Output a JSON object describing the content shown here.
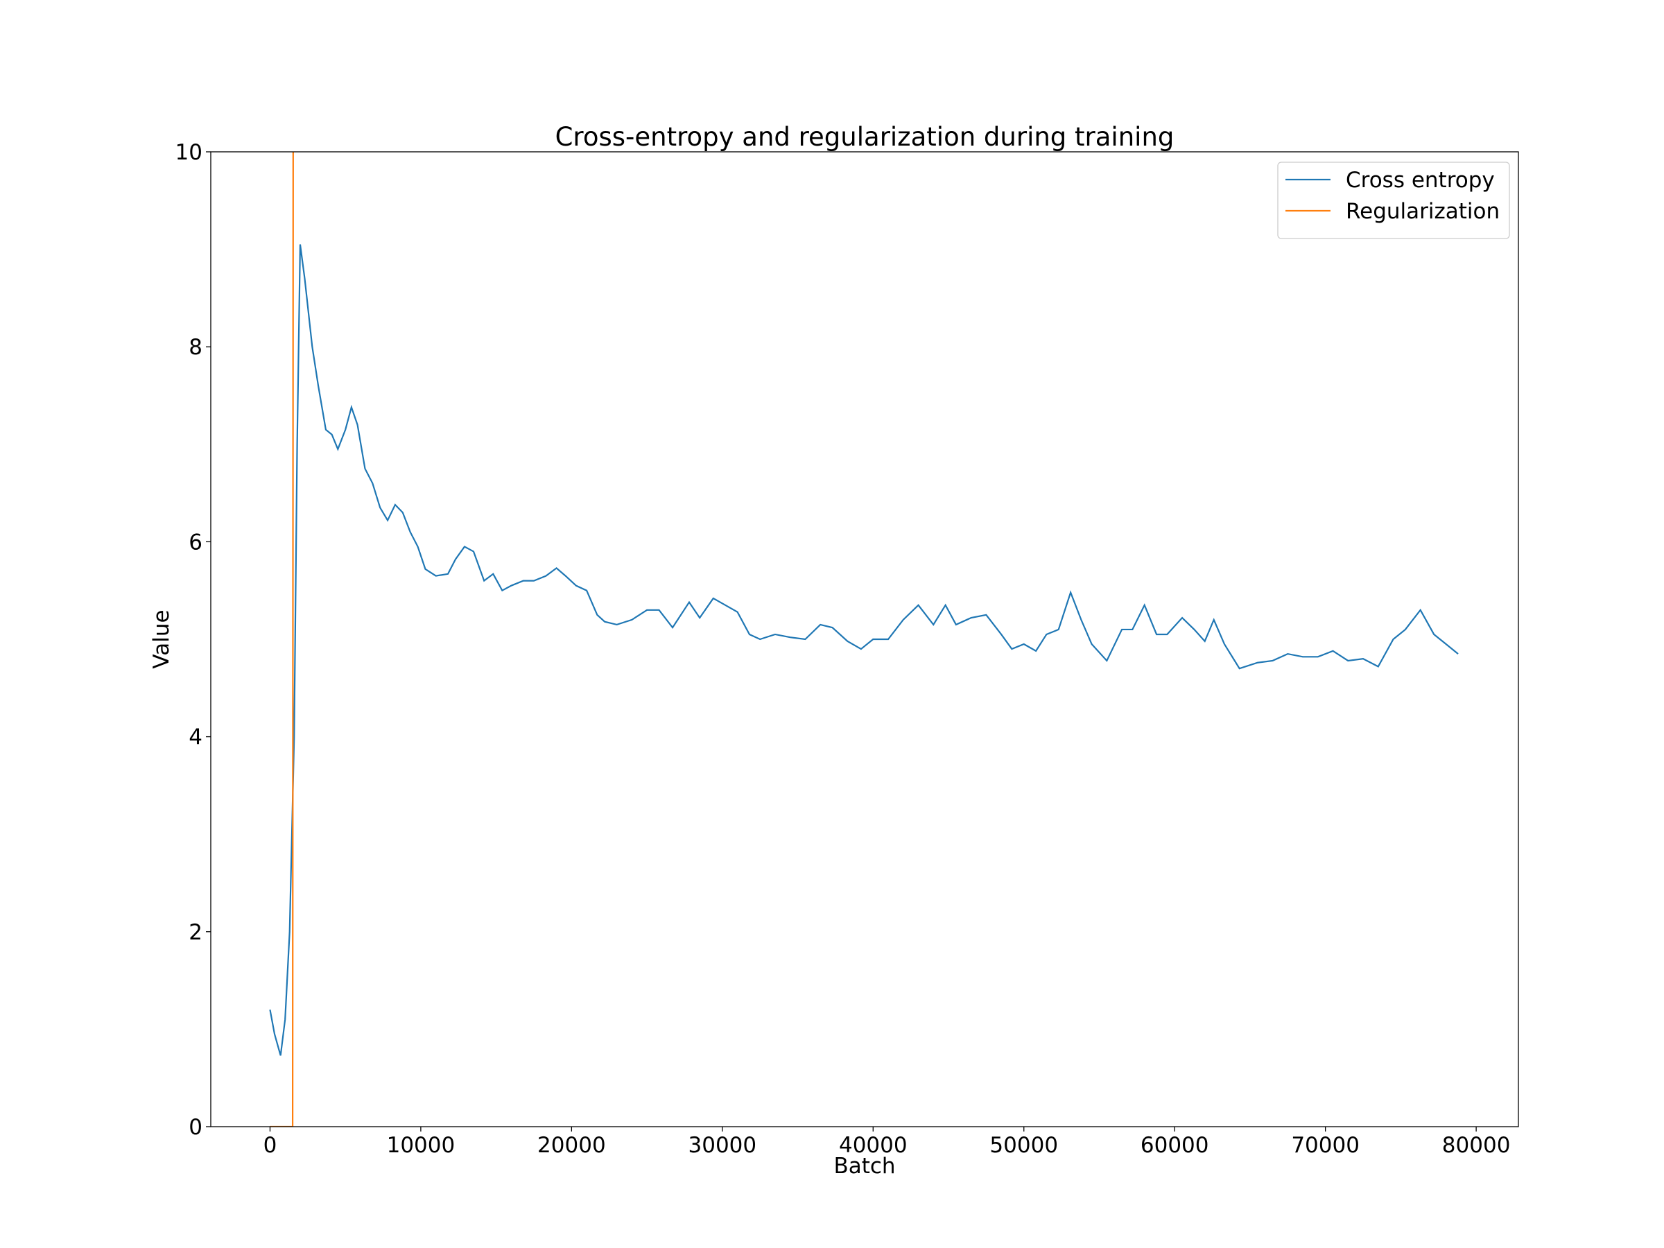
{
  "chart_data": {
    "type": "line",
    "title": "Cross-entropy and regularization during training",
    "x_label": "Batch",
    "y_label": "Value",
    "xlim": [
      -3930,
      82800
    ],
    "ylim": [
      0,
      10
    ],
    "xticks": [
      0,
      10000,
      20000,
      30000,
      40000,
      50000,
      60000,
      70000,
      80000
    ],
    "yticks": [
      0,
      2,
      4,
      6,
      8,
      10
    ],
    "legend": "upper right",
    "series": [
      {
        "name": "Cross entropy",
        "color": "#1f77b4",
        "x": [
          0,
          300,
          700,
          1000,
          1300,
          1600,
          1800,
          2000,
          2300,
          2800,
          3200,
          3700,
          4100,
          4500,
          5000,
          5400,
          5800,
          6300,
          6800,
          7300,
          7800,
          8300,
          8800,
          9300,
          9800,
          10300,
          11000,
          11800,
          12300,
          12900,
          13500,
          14200,
          14800,
          15400,
          16000,
          16800,
          17500,
          18300,
          19000,
          19600,
          20300,
          21000,
          21700,
          22200,
          23000,
          24000,
          25000,
          25800,
          26700,
          27800,
          28500,
          29400,
          30200,
          31000,
          31800,
          32500,
          33500,
          34500,
          35500,
          36500,
          37300,
          38300,
          39200,
          40000,
          41000,
          42000,
          43000,
          44000,
          44800,
          45500,
          46500,
          47500,
          48500,
          49200,
          50000,
          50800,
          51500,
          52300,
          53100,
          53800,
          54500,
          55500,
          56500,
          57200,
          58000,
          58800,
          59500,
          60500,
          61300,
          62000,
          62600,
          63300,
          64300,
          65500,
          66500,
          67500,
          68500,
          69500,
          70500,
          71500,
          72500,
          73500,
          74500,
          75300,
          76300,
          77200,
          78000,
          78800
        ],
        "values": [
          1.2,
          0.95,
          0.73,
          1.1,
          2.0,
          4.0,
          7.0,
          9.05,
          8.7,
          8.0,
          7.6,
          7.15,
          7.1,
          6.95,
          7.15,
          7.38,
          7.2,
          6.75,
          6.6,
          6.35,
          6.22,
          6.38,
          6.3,
          6.1,
          5.95,
          5.72,
          5.65,
          5.67,
          5.82,
          5.95,
          5.9,
          5.6,
          5.67,
          5.5,
          5.55,
          5.6,
          5.6,
          5.65,
          5.73,
          5.65,
          5.55,
          5.5,
          5.25,
          5.18,
          5.15,
          5.2,
          5.3,
          5.3,
          5.12,
          5.38,
          5.22,
          5.42,
          5.35,
          5.28,
          5.05,
          5.0,
          5.05,
          5.02,
          5.0,
          5.15,
          5.12,
          4.98,
          4.9,
          5.0,
          5.0,
          5.2,
          5.35,
          5.15,
          5.35,
          5.15,
          5.22,
          5.25,
          5.05,
          4.9,
          4.95,
          4.88,
          5.05,
          5.1,
          5.48,
          5.2,
          4.95,
          4.78,
          5.1,
          5.1,
          5.35,
          5.05,
          5.05,
          5.22,
          5.1,
          4.98,
          5.2,
          4.95,
          4.7,
          4.76,
          4.78,
          4.85,
          4.82,
          4.82,
          4.88,
          4.78,
          4.8,
          4.72,
          5.0,
          5.1,
          5.3,
          5.05,
          4.95,
          4.85
        ]
      },
      {
        "name": "Regularization",
        "color": "#ff7f0e",
        "x": [
          0,
          1500,
          1570
        ],
        "values": [
          0,
          0,
          20
        ]
      }
    ]
  }
}
